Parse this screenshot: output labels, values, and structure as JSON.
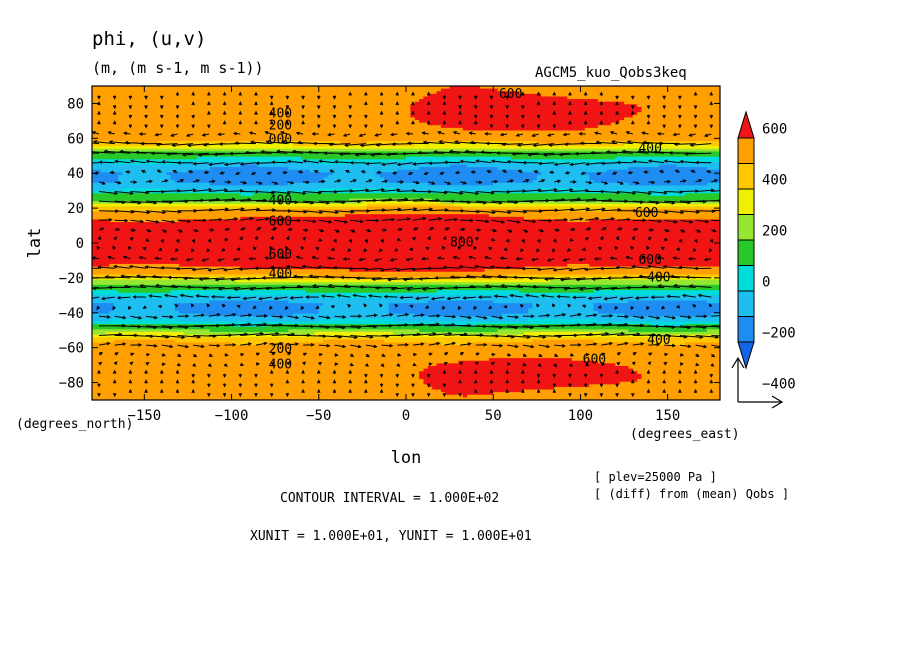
{
  "header": {
    "title": "phi, (u,v)",
    "units": "(m, (m s-1, m s-1))",
    "run": "AGCM5_kuo_Qobs3keq"
  },
  "footer": {
    "contour_interval": "CONTOUR INTERVAL = 1.000E+02",
    "vector_units": "XUNIT = 1.000E+01, YUNIT = 1.000E+01",
    "plev": "[ plev=25000 Pa ]",
    "diff": "[ (diff) from (mean) Qobs ]"
  },
  "chart_data": {
    "type": "heatmap",
    "title": "phi, (u,v)",
    "xlabel": "lon",
    "ylabel": "lat",
    "x_unit_label": "(degrees_east)",
    "y_unit_label": "(degrees_north)",
    "xlim": [
      -180,
      180
    ],
    "ylim": [
      -90,
      90
    ],
    "x_ticks": [
      -150,
      -100,
      -50,
      0,
      50,
      100,
      150
    ],
    "y_ticks": [
      -80,
      -60,
      -40,
      -20,
      0,
      20,
      40,
      60,
      80
    ],
    "legend": {
      "placement": "right",
      "labels": [
        "600",
        "400",
        "200",
        "0",
        "-200",
        "-400"
      ],
      "levels": [
        -500,
        -400,
        -300,
        -200,
        -100,
        0,
        100,
        200,
        300,
        400,
        500,
        600
      ],
      "colors": [
        "#1464e6",
        "#1e8cf0",
        "#1ebef0",
        "#00dcdc",
        "#28c828",
        "#28c828",
        "#96e632",
        "#f0f000",
        "#ffc800",
        "#ffa000",
        "#ffa000",
        "#f01414"
      ]
    },
    "zonal_profile": {
      "lat": [
        -90,
        -80,
        -70,
        -60,
        -55,
        -50,
        -45,
        -40,
        -35,
        -30,
        -25,
        -20,
        -15,
        -10,
        -5,
        0,
        5,
        10,
        15,
        20,
        25,
        30,
        35,
        40,
        45,
        50,
        55,
        60,
        65,
        70,
        80,
        90
      ],
      "phi": [
        450,
        450,
        450,
        380,
        250,
        0,
        -300,
        -420,
        -420,
        -300,
        -100,
        200,
        450,
        590,
        640,
        650,
        640,
        590,
        450,
        250,
        -50,
        -300,
        -420,
        -430,
        -350,
        -150,
        150,
        380,
        450,
        450,
        450,
        450
      ]
    },
    "anomalies": [
      {
        "lon": 0,
        "lat": 0,
        "dlon": 55,
        "dlat": 17,
        "amp": 350
      },
      {
        "lon": 65,
        "lat": 75,
        "dlon": 48,
        "dlat": 9,
        "amp": 280
      },
      {
        "lon": 70,
        "lat": -75,
        "dlon": 45,
        "dlat": 8,
        "amp": 280
      }
    ],
    "contour_labels": [
      {
        "lon": 60,
        "lat": 83,
        "text": "600"
      },
      {
        "lon": -72,
        "lat": 72,
        "text": "400"
      },
      {
        "lon": -72,
        "lat": 65,
        "text": "200"
      },
      {
        "lon": -72,
        "lat": 57,
        "text": "000"
      },
      {
        "lon": -72,
        "lat": 22,
        "text": "400"
      },
      {
        "lon": -72,
        "lat": 10,
        "text": "600"
      },
      {
        "lon": 32,
        "lat": -2,
        "text": "800"
      },
      {
        "lon": -72,
        "lat": -9,
        "text": "600"
      },
      {
        "lon": -72,
        "lat": -20,
        "text": "400"
      },
      {
        "lon": -72,
        "lat": -63,
        "text": "200"
      },
      {
        "lon": -72,
        "lat": -72,
        "text": "400"
      },
      {
        "lon": 108,
        "lat": -69,
        "text": "600"
      },
      {
        "lon": 140,
        "lat": 52,
        "text": "400"
      },
      {
        "lon": 138,
        "lat": 15,
        "text": "600"
      },
      {
        "lon": 140,
        "lat": -12,
        "text": "600"
      },
      {
        "lon": 145,
        "lat": -22,
        "text": "400"
      },
      {
        "lon": 145,
        "lat": -58,
        "text": "400"
      }
    ],
    "vector_reference": {
      "x": 10,
      "y": 10
    }
  }
}
